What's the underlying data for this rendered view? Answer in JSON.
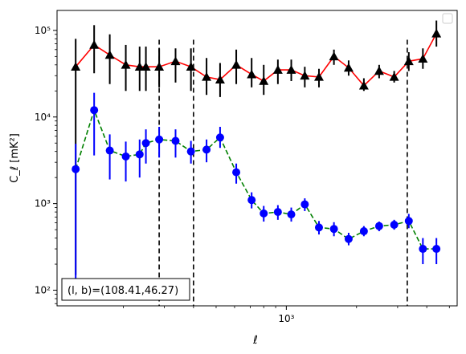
{
  "chart_data": {
    "type": "line",
    "xscale": "log",
    "yscale": "log",
    "xlabel": "ℓ",
    "ylabel": "C_ℓ  [mK²]",
    "xlim": [
      104,
      5400
    ],
    "ylim": [
      66,
      170000
    ],
    "x_tick_labels": [
      {
        "value": 1000,
        "label": "10³"
      }
    ],
    "y_tick_labels": [
      {
        "value": 100,
        "label": "10²"
      },
      {
        "value": 1000,
        "label": "10³"
      },
      {
        "value": 10000,
        "label": "10⁴"
      },
      {
        "value": 100000,
        "label": "10⁵"
      }
    ],
    "legend": {
      "position": "top-right",
      "entries": []
    },
    "annotation": "(l, b)=(108.41,46.27)",
    "vlines": [
      285,
      400,
      3300
    ],
    "series": [
      {
        "color": "#ff0000",
        "marker": "triangle",
        "marker_color": "#000000",
        "linestyle": "solid",
        "errorbar_color": "#000000",
        "x": [
          125,
          150,
          175,
          205,
          235,
          250,
          285,
          335,
          390,
          455,
          520,
          610,
          710,
          800,
          920,
          1050,
          1200,
          1380,
          1600,
          1850,
          2150,
          2500,
          2900,
          3350,
          3850,
          4400
        ],
        "y": [
          38000,
          68000,
          52000,
          40000,
          38000,
          38000,
          38000,
          44000,
          38000,
          29000,
          27000,
          40000,
          31000,
          26000,
          35000,
          35000,
          30000,
          29000,
          50000,
          37000,
          23000,
          34000,
          29000,
          44000,
          47000,
          92000
        ],
        "y_low": [
          150,
          32000,
          24000,
          20000,
          20000,
          20000,
          22000,
          25000,
          20000,
          18000,
          17000,
          24000,
          22000,
          18000,
          24000,
          26000,
          22000,
          22000,
          40000,
          30000,
          20000,
          28000,
          25000,
          34000,
          36000,
          65000
        ],
        "y_high": [
          80000,
          115000,
          90000,
          68000,
          65000,
          65000,
          62000,
          62000,
          62000,
          48000,
          42000,
          60000,
          48000,
          40000,
          46000,
          46000,
          38000,
          36000,
          60000,
          45000,
          28000,
          40000,
          34000,
          56000,
          62000,
          130000
        ]
      },
      {
        "color": "#008000",
        "marker": "circle",
        "marker_color": "#0000ff",
        "linestyle": "dashed",
        "errorbar_color": "#0000ff",
        "x": [
          125,
          150,
          175,
          205,
          235,
          250,
          285,
          335,
          390,
          455,
          520,
          610,
          710,
          800,
          920,
          1050,
          1200,
          1380,
          1600,
          1850,
          2150,
          2500,
          2900,
          3350,
          3850,
          4400
        ],
        "y": [
          2500,
          12000,
          4100,
          3500,
          3700,
          5000,
          5500,
          5300,
          4000,
          4200,
          5800,
          2300,
          1100,
          770,
          800,
          750,
          980,
          530,
          510,
          390,
          480,
          550,
          570,
          630,
          300,
          300
        ],
        "y_low": [
          80,
          3600,
          1900,
          1800,
          2000,
          2900,
          3400,
          3400,
          2900,
          3000,
          4400,
          1700,
          880,
          620,
          650,
          620,
          820,
          440,
          420,
          330,
          420,
          480,
          500,
          520,
          200,
          200
        ],
        "y_high": [
          4900,
          19000,
          6300,
          5200,
          5500,
          7200,
          7700,
          7200,
          5300,
          5500,
          7700,
          2900,
          1350,
          940,
          960,
          900,
          1150,
          630,
          610,
          460,
          550,
          620,
          650,
          760,
          400,
          400
        ]
      }
    ]
  }
}
